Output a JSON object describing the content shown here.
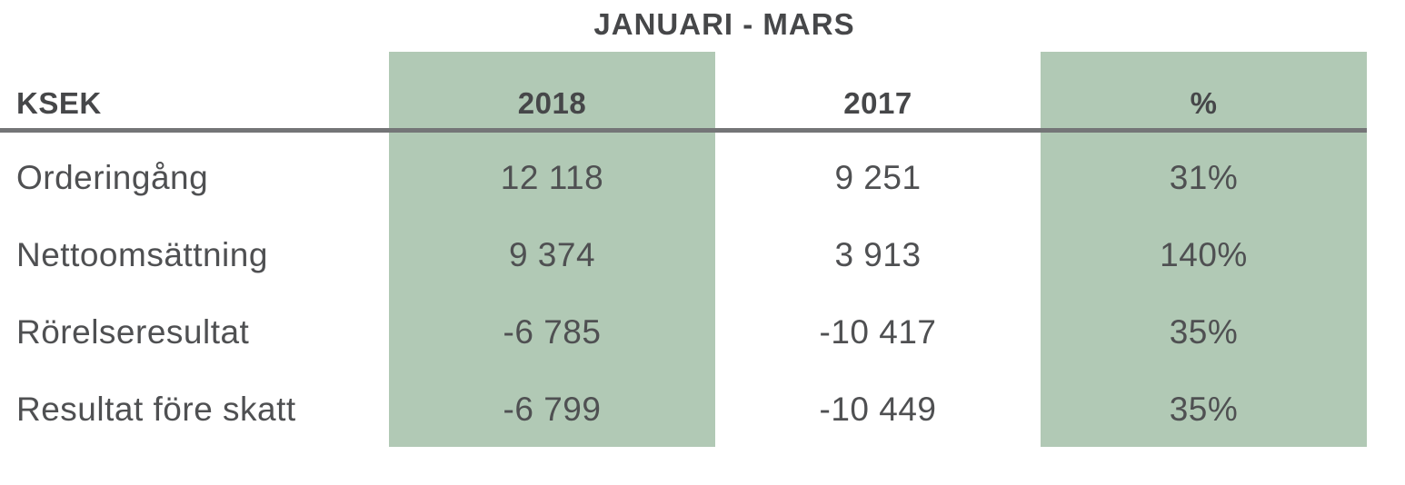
{
  "title": "JANUARI - MARS",
  "table": {
    "unit_label": "KSEK",
    "columns": [
      "2018",
      "2017",
      "%"
    ],
    "highlighted_columns": [
      "2018",
      "%"
    ],
    "rows": [
      {
        "label": "Orderingång",
        "y2018": "12 118",
        "y2017": "9 251",
        "pct": "31%"
      },
      {
        "label": "Nettoomsättning",
        "y2018": "9 374",
        "y2017": "3 913",
        "pct": "140%"
      },
      {
        "label": "Rörelseresultat",
        "y2018": "-6 785",
        "y2017": "-10 417",
        "pct": "35%"
      },
      {
        "label": "Resultat före skatt",
        "y2018": "-6 799",
        "y2017": "-10 449",
        "pct": "35%"
      }
    ]
  },
  "chart_data": {
    "type": "table",
    "title": "JANUARI - MARS",
    "columns": [
      "KSEK",
      "2018",
      "2017",
      "%"
    ],
    "rows": [
      [
        "Orderingång",
        12118,
        9251,
        "31%"
      ],
      [
        "Nettoomsättning",
        9374,
        3913,
        "140%"
      ],
      [
        "Rörelseresultat",
        -6785,
        -10417,
        "35%"
      ],
      [
        "Resultat före skatt",
        -6799,
        -10449,
        "35%"
      ]
    ]
  },
  "colors": {
    "highlight_green": "#b1c9b5",
    "divider_gray": "#747577",
    "text_bold": "#464749",
    "text_body": "#4f5052"
  }
}
